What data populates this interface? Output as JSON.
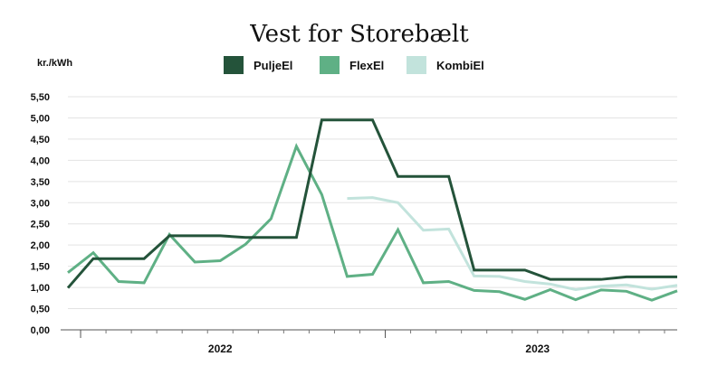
{
  "chart_data": {
    "type": "line",
    "title": "Vest for Storebælt",
    "ylabel": "kr./kWh",
    "ylim": [
      0,
      5.5
    ],
    "yticks": [
      "0,00",
      "0,50",
      "1,00",
      "1,50",
      "2,00",
      "2,50",
      "3,00",
      "3,50",
      "4,00",
      "4,50",
      "5,00",
      "5,50"
    ],
    "x_count": 25,
    "year_labels": [
      {
        "label": "2022",
        "index": 6
      },
      {
        "label": "2023",
        "index": 18.5
      }
    ],
    "legend_position": "top",
    "grid": true,
    "series": [
      {
        "name": "PuljeEl",
        "color": "#24533a",
        "values": [
          0.99,
          1.68,
          1.68,
          1.68,
          2.22,
          2.22,
          2.22,
          2.18,
          2.18,
          2.18,
          4.95,
          4.95,
          4.95,
          3.62,
          3.62,
          3.62,
          1.41,
          1.41,
          1.41,
          1.19,
          1.19,
          1.19,
          1.25,
          1.25,
          1.25
        ]
      },
      {
        "name": "FlexEl",
        "color": "#5fb085",
        "values": [
          1.35,
          1.82,
          1.14,
          1.11,
          2.25,
          1.6,
          1.63,
          2.02,
          2.62,
          4.33,
          3.19,
          1.26,
          1.31,
          2.36,
          1.11,
          1.14,
          0.93,
          0.9,
          0.72,
          0.95,
          0.71,
          0.94,
          0.91,
          0.7,
          0.92
        ]
      },
      {
        "name": "KombiEl",
        "color": "#c2e3dc",
        "values": [
          null,
          null,
          null,
          null,
          null,
          null,
          null,
          null,
          null,
          null,
          null,
          3.1,
          3.12,
          3.0,
          2.35,
          2.38,
          1.27,
          1.26,
          1.14,
          1.08,
          0.95,
          1.03,
          1.06,
          0.96,
          1.05
        ]
      }
    ]
  }
}
